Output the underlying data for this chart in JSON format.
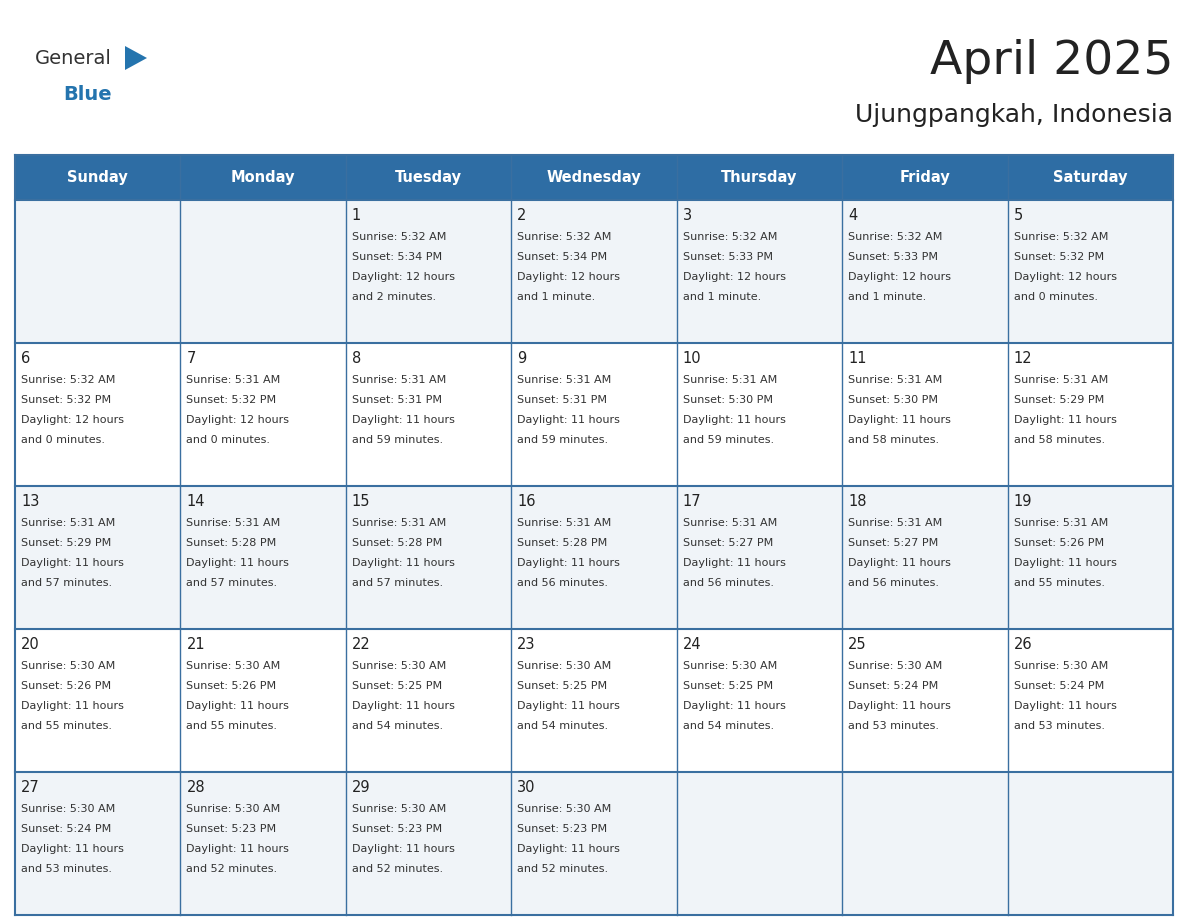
{
  "title": "April 2025",
  "subtitle": "Ujungpangkah, Indonesia",
  "header_bg": "#2E6DA4",
  "header_text_color": "#FFFFFF",
  "cell_bg_odd": "#F0F4F8",
  "cell_bg_even": "#FFFFFF",
  "border_color": "#2E6DA4",
  "grid_line_color": "#3A6FA0",
  "title_color": "#222222",
  "day_number_color": "#222222",
  "cell_text_color": "#333333",
  "days_of_week": [
    "Sunday",
    "Monday",
    "Tuesday",
    "Wednesday",
    "Thursday",
    "Friday",
    "Saturday"
  ],
  "weeks": [
    [
      {
        "day": "",
        "sunrise": "",
        "sunset": "",
        "daylight_hours": "",
        "daylight_minutes": ""
      },
      {
        "day": "",
        "sunrise": "",
        "sunset": "",
        "daylight_hours": "",
        "daylight_minutes": ""
      },
      {
        "day": "1",
        "sunrise": "5:32 AM",
        "sunset": "5:34 PM",
        "daylight_hours": "12",
        "daylight_minutes": "2"
      },
      {
        "day": "2",
        "sunrise": "5:32 AM",
        "sunset": "5:34 PM",
        "daylight_hours": "12",
        "daylight_minutes": "1"
      },
      {
        "day": "3",
        "sunrise": "5:32 AM",
        "sunset": "5:33 PM",
        "daylight_hours": "12",
        "daylight_minutes": "1"
      },
      {
        "day": "4",
        "sunrise": "5:32 AM",
        "sunset": "5:33 PM",
        "daylight_hours": "12",
        "daylight_minutes": "1"
      },
      {
        "day": "5",
        "sunrise": "5:32 AM",
        "sunset": "5:32 PM",
        "daylight_hours": "12",
        "daylight_minutes": "0"
      }
    ],
    [
      {
        "day": "6",
        "sunrise": "5:32 AM",
        "sunset": "5:32 PM",
        "daylight_hours": "12",
        "daylight_minutes": "0"
      },
      {
        "day": "7",
        "sunrise": "5:31 AM",
        "sunset": "5:32 PM",
        "daylight_hours": "12",
        "daylight_minutes": "0"
      },
      {
        "day": "8",
        "sunrise": "5:31 AM",
        "sunset": "5:31 PM",
        "daylight_hours": "11",
        "daylight_minutes": "59"
      },
      {
        "day": "9",
        "sunrise": "5:31 AM",
        "sunset": "5:31 PM",
        "daylight_hours": "11",
        "daylight_minutes": "59"
      },
      {
        "day": "10",
        "sunrise": "5:31 AM",
        "sunset": "5:30 PM",
        "daylight_hours": "11",
        "daylight_minutes": "59"
      },
      {
        "day": "11",
        "sunrise": "5:31 AM",
        "sunset": "5:30 PM",
        "daylight_hours": "11",
        "daylight_minutes": "58"
      },
      {
        "day": "12",
        "sunrise": "5:31 AM",
        "sunset": "5:29 PM",
        "daylight_hours": "11",
        "daylight_minutes": "58"
      }
    ],
    [
      {
        "day": "13",
        "sunrise": "5:31 AM",
        "sunset": "5:29 PM",
        "daylight_hours": "11",
        "daylight_minutes": "57"
      },
      {
        "day": "14",
        "sunrise": "5:31 AM",
        "sunset": "5:28 PM",
        "daylight_hours": "11",
        "daylight_minutes": "57"
      },
      {
        "day": "15",
        "sunrise": "5:31 AM",
        "sunset": "5:28 PM",
        "daylight_hours": "11",
        "daylight_minutes": "57"
      },
      {
        "day": "16",
        "sunrise": "5:31 AM",
        "sunset": "5:28 PM",
        "daylight_hours": "11",
        "daylight_minutes": "56"
      },
      {
        "day": "17",
        "sunrise": "5:31 AM",
        "sunset": "5:27 PM",
        "daylight_hours": "11",
        "daylight_minutes": "56"
      },
      {
        "day": "18",
        "sunrise": "5:31 AM",
        "sunset": "5:27 PM",
        "daylight_hours": "11",
        "daylight_minutes": "56"
      },
      {
        "day": "19",
        "sunrise": "5:31 AM",
        "sunset": "5:26 PM",
        "daylight_hours": "11",
        "daylight_minutes": "55"
      }
    ],
    [
      {
        "day": "20",
        "sunrise": "5:30 AM",
        "sunset": "5:26 PM",
        "daylight_hours": "11",
        "daylight_minutes": "55"
      },
      {
        "day": "21",
        "sunrise": "5:30 AM",
        "sunset": "5:26 PM",
        "daylight_hours": "11",
        "daylight_minutes": "55"
      },
      {
        "day": "22",
        "sunrise": "5:30 AM",
        "sunset": "5:25 PM",
        "daylight_hours": "11",
        "daylight_minutes": "54"
      },
      {
        "day": "23",
        "sunrise": "5:30 AM",
        "sunset": "5:25 PM",
        "daylight_hours": "11",
        "daylight_minutes": "54"
      },
      {
        "day": "24",
        "sunrise": "5:30 AM",
        "sunset": "5:25 PM",
        "daylight_hours": "11",
        "daylight_minutes": "54"
      },
      {
        "day": "25",
        "sunrise": "5:30 AM",
        "sunset": "5:24 PM",
        "daylight_hours": "11",
        "daylight_minutes": "53"
      },
      {
        "day": "26",
        "sunrise": "5:30 AM",
        "sunset": "5:24 PM",
        "daylight_hours": "11",
        "daylight_minutes": "53"
      }
    ],
    [
      {
        "day": "27",
        "sunrise": "5:30 AM",
        "sunset": "5:24 PM",
        "daylight_hours": "11",
        "daylight_minutes": "53"
      },
      {
        "day": "28",
        "sunrise": "5:30 AM",
        "sunset": "5:23 PM",
        "daylight_hours": "11",
        "daylight_minutes": "52"
      },
      {
        "day": "29",
        "sunrise": "5:30 AM",
        "sunset": "5:23 PM",
        "daylight_hours": "11",
        "daylight_minutes": "52"
      },
      {
        "day": "30",
        "sunrise": "5:30 AM",
        "sunset": "5:23 PM",
        "daylight_hours": "11",
        "daylight_minutes": "52"
      },
      {
        "day": "",
        "sunrise": "",
        "sunset": "",
        "daylight_hours": "",
        "daylight_minutes": ""
      },
      {
        "day": "",
        "sunrise": "",
        "sunset": "",
        "daylight_hours": "",
        "daylight_minutes": ""
      },
      {
        "day": "",
        "sunrise": "",
        "sunset": "",
        "daylight_hours": "",
        "daylight_minutes": ""
      }
    ]
  ],
  "logo_text1": "General",
  "logo_text2": "Blue",
  "logo_text1_color": "#333333",
  "logo_text2_color": "#2474AE",
  "logo_triangle_color": "#2474AE",
  "header_fontsize": 10.5,
  "day_number_fontsize": 10.5,
  "cell_text_fontsize": 8.0,
  "title_fontsize": 34,
  "subtitle_fontsize": 18,
  "logo_fontsize": 14
}
